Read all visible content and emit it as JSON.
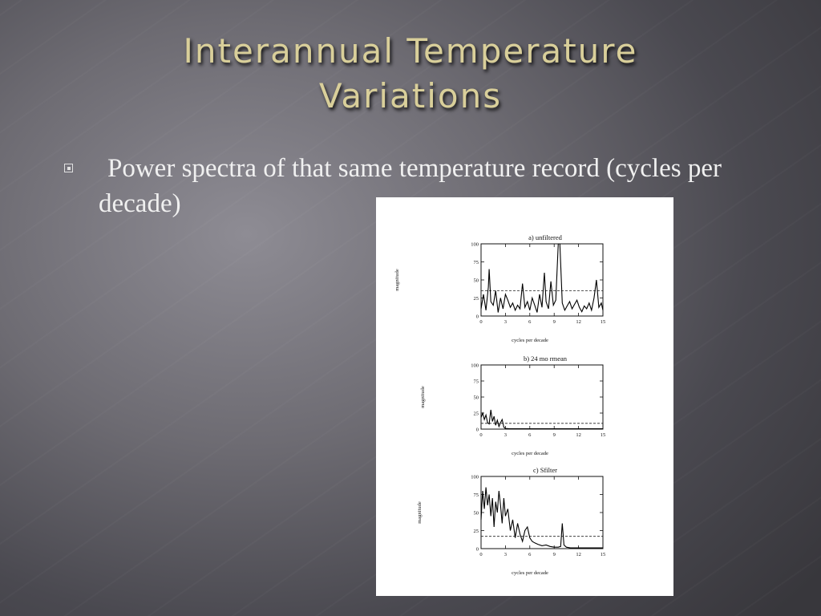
{
  "slide": {
    "title_line1": "Interannual Temperature",
    "title_line2": "Variations",
    "bullet_text": "Power spectra of that same temperature record (cycles per decade)"
  },
  "figure": {
    "panels": [
      {
        "title": "a) unfiltered",
        "xlabel": "cycles per decade",
        "ylabel": "magnitude"
      },
      {
        "title": "b) 24 mo rmean",
        "xlabel": "cycles per decade",
        "ylabel": "magnitude"
      },
      {
        "title": "c) Sfilter",
        "xlabel": "cycles per decade",
        "ylabel": "magnitude"
      }
    ]
  },
  "chart_data": [
    {
      "type": "line",
      "title": "a) unfiltered",
      "xlabel": "cycles per decade",
      "ylabel": "magnitude",
      "xlim": [
        0,
        15
      ],
      "ylim": [
        0,
        100
      ],
      "x_ticks": [
        "0",
        "3",
        "6",
        "9",
        "12",
        "15"
      ],
      "y_ticks": [
        "0",
        "25",
        "50",
        "75",
        "100"
      ],
      "threshold": 35,
      "x": [
        0,
        0.3,
        0.6,
        0.9,
        1.0,
        1.2,
        1.5,
        1.8,
        2.1,
        2.4,
        2.7,
        3.0,
        3.3,
        3.6,
        3.9,
        4.2,
        4.5,
        4.8,
        5.1,
        5.4,
        5.7,
        6.0,
        6.3,
        6.6,
        6.9,
        7.2,
        7.5,
        7.8,
        8.0,
        8.3,
        8.6,
        8.9,
        9.2,
        9.5,
        9.7,
        10.0,
        10.3,
        10.6,
        10.9,
        11.2,
        11.5,
        11.8,
        12.1,
        12.4,
        12.7,
        13.0,
        13.3,
        13.6,
        13.9,
        14.2,
        14.5,
        14.8,
        15.0
      ],
      "series": [
        {
          "values": [
            10,
            30,
            8,
            40,
            65,
            20,
            15,
            35,
            5,
            25,
            10,
            30,
            22,
            12,
            18,
            8,
            15,
            10,
            45,
            12,
            20,
            8,
            25,
            15,
            5,
            30,
            12,
            60,
            20,
            10,
            48,
            15,
            22,
            100,
            100,
            18,
            8,
            14,
            20,
            10,
            16,
            22,
            12,
            6,
            14,
            10,
            18,
            8,
            25,
            50,
            12,
            18,
            8
          ]
        }
      ]
    },
    {
      "type": "line",
      "title": "b) 24 mo rmean",
      "xlabel": "cycles per decade",
      "ylabel": "magnitude",
      "xlim": [
        0,
        15
      ],
      "ylim": [
        0,
        100
      ],
      "x_ticks": [
        "0",
        "3",
        "6",
        "9",
        "12",
        "15"
      ],
      "y_ticks": [
        "0",
        "25",
        "50",
        "75",
        "100"
      ],
      "threshold": 9,
      "x": [
        0,
        0.2,
        0.4,
        0.6,
        0.8,
        1.0,
        1.2,
        1.4,
        1.6,
        1.8,
        2.0,
        2.2,
        2.4,
        2.6,
        2.8,
        3.0,
        3.5,
        4.0,
        5.0,
        6.0,
        7.0,
        8.0,
        9.0,
        10.0,
        11.0,
        12.0,
        13.0,
        14.0,
        15.0
      ],
      "series": [
        {
          "values": [
            18,
            25,
            15,
            22,
            10,
            8,
            30,
            12,
            20,
            6,
            14,
            4,
            10,
            15,
            3,
            1,
            0.5,
            0.5,
            0.5,
            0.5,
            0.5,
            0.5,
            0.5,
            0.5,
            0.5,
            0.5,
            0.5,
            0.5,
            0.5
          ]
        }
      ]
    },
    {
      "type": "line",
      "title": "c) Sfilter",
      "xlabel": "cycles per decade",
      "ylabel": "magnitude",
      "xlim": [
        0,
        15
      ],
      "ylim": [
        0,
        100
      ],
      "x_ticks": [
        "0",
        "3",
        "6",
        "9",
        "12",
        "15"
      ],
      "y_ticks": [
        "0",
        "25",
        "50",
        "75",
        "100"
      ],
      "threshold": 17,
      "x": [
        0,
        0.2,
        0.4,
        0.6,
        0.8,
        1.0,
        1.2,
        1.4,
        1.6,
        1.8,
        2.0,
        2.2,
        2.4,
        2.6,
        2.8,
        3.0,
        3.3,
        3.6,
        3.9,
        4.2,
        4.5,
        4.8,
        5.1,
        5.4,
        5.7,
        6.0,
        6.3,
        6.6,
        7.0,
        7.5,
        8.0,
        8.5,
        9.0,
        9.5,
        9.8,
        10.0,
        10.2,
        10.5,
        11.0,
        12.0,
        13.0,
        14.0,
        15.0
      ],
      "series": [
        {
          "values": [
            40,
            80,
            55,
            85,
            60,
            75,
            45,
            70,
            30,
            65,
            50,
            80,
            60,
            35,
            70,
            45,
            55,
            25,
            40,
            15,
            35,
            20,
            10,
            25,
            30,
            15,
            10,
            8,
            6,
            4,
            5,
            3,
            2,
            2,
            3,
            35,
            5,
            2,
            1,
            1,
            1,
            1,
            1
          ]
        }
      ]
    }
  ]
}
